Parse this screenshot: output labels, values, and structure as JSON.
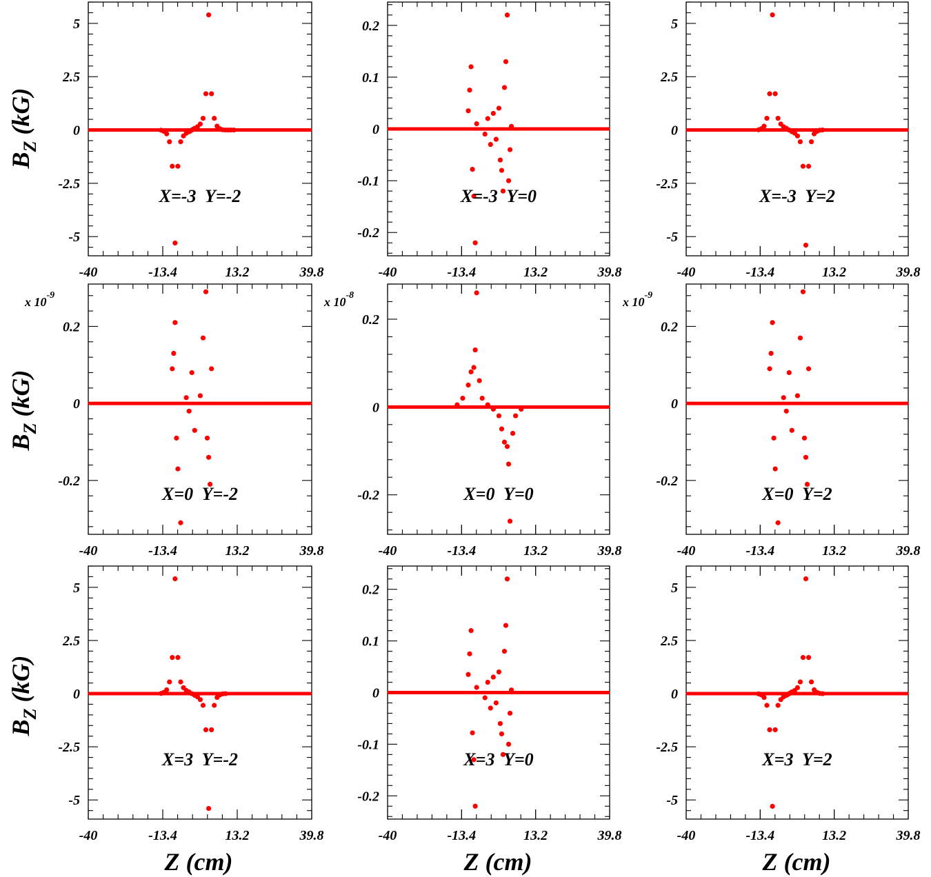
{
  "style": {
    "marker_color": "#ff0000",
    "axis_color": "#000000"
  },
  "axis_titles": {
    "y": "B",
    "y_sub": "Z",
    "y_unit": "(kG)",
    "x": "Z (cm)"
  },
  "chart_data": [
    {
      "type": "scatter",
      "annotation": "X=-3  Y=-2",
      "multiplier": "",
      "yticks": [
        -5,
        -2.5,
        0,
        2.5,
        5
      ],
      "ytick_labels": [
        "-5",
        "-2.5",
        "0",
        "2.5",
        "5"
      ],
      "ylim": [
        -5.9,
        6.0
      ],
      "xlim": [
        -40,
        39.8
      ],
      "xticks": [
        -40,
        -13.4,
        13.2,
        39.8
      ],
      "xtick_labels": [
        "-40",
        "-13.4",
        "13.2",
        "39.8"
      ],
      "x": [
        -14,
        -13,
        -12,
        -11,
        -10,
        -9,
        -8,
        -7,
        -6,
        -5,
        -4,
        -3.5,
        -3,
        -2.5,
        -2,
        -1,
        0,
        1,
        2,
        3,
        4,
        5,
        6,
        7,
        8,
        9,
        10,
        11,
        12
      ],
      "y": [
        -0.01,
        -0.06,
        -0.18,
        -0.55,
        -1.7,
        -5.3,
        -1.7,
        -0.55,
        -0.28,
        -0.15,
        -0.08,
        -0.04,
        0,
        0.04,
        0.08,
        0.15,
        0.28,
        0.55,
        1.7,
        5.4,
        1.7,
        0.55,
        0.18,
        0.06,
        0.01,
        0,
        0,
        0,
        0
      ]
    },
    {
      "type": "scatter",
      "annotation": "X=-3  Y=0",
      "multiplier": "",
      "yticks": [
        -0.2,
        -0.1,
        0,
        0.1,
        0.2
      ],
      "ytick_labels": [
        "-0.2",
        "-0.1",
        "0",
        "0.1",
        "0.2"
      ],
      "ylim": [
        -0.245,
        0.245
      ],
      "xlim": [
        -40,
        39.8
      ],
      "xticks": [
        -40,
        -13.4,
        13.2,
        39.8
      ],
      "xtick_labels": [
        "-40",
        "-13.4",
        "13.2",
        "39.8"
      ],
      "x": [
        -11,
        -10.5,
        -10,
        -9.5,
        -9,
        -8.5,
        -8,
        -5,
        -4,
        -3,
        -2,
        -1,
        0,
        0.5,
        1,
        1.5,
        2,
        2.5,
        3,
        3.5,
        4,
        4.5
      ],
      "y": [
        0.035,
        0.075,
        0.12,
        -0.078,
        -0.13,
        -0.22,
        0.01,
        -0.01,
        0.02,
        -0.03,
        0.03,
        -0.02,
        0.04,
        -0.06,
        -0.08,
        -0.12,
        0.08,
        0.13,
        0.22,
        -0.1,
        -0.04,
        0.005
      ]
    },
    {
      "type": "scatter",
      "annotation": "X=-3  Y=2",
      "multiplier": "",
      "yticks": [
        -5,
        -2.5,
        0,
        2.5,
        5
      ],
      "ytick_labels": [
        "-5",
        "-2.5",
        "0",
        "2.5",
        "5"
      ],
      "ylim": [
        -5.9,
        6.0
      ],
      "xlim": [
        -40,
        39.8
      ],
      "xticks": [
        -40,
        -13.4,
        13.2,
        39.8
      ],
      "xtick_labels": [
        "-40",
        "-13.4",
        "13.2",
        "39.8"
      ],
      "x": [
        -14,
        -13,
        -12,
        -11,
        -10,
        -9,
        -8,
        -7,
        -6,
        -5,
        -4,
        -3,
        -2,
        -1,
        0,
        1,
        2,
        3,
        4,
        5,
        6,
        7,
        8,
        9
      ],
      "y": [
        0.01,
        0.06,
        0.18,
        0.55,
        1.7,
        5.4,
        1.7,
        0.55,
        0.28,
        0.15,
        0.08,
        0,
        -0.08,
        -0.15,
        -0.28,
        -0.55,
        -1.7,
        -5.4,
        -1.7,
        -0.55,
        -0.18,
        -0.06,
        -0.01,
        0
      ]
    },
    {
      "type": "scatter",
      "annotation": "X=0  Y=-2",
      "multiplier": "x 10^-9",
      "yticks": [
        -0.2,
        0,
        0.2
      ],
      "ytick_labels": [
        "-0.2",
        "0",
        "0.2"
      ],
      "ylim": [
        -0.34,
        0.31
      ],
      "xlim": [
        -40,
        39.8
      ],
      "xticks": [
        -40,
        -13.4,
        13.2,
        39.8
      ],
      "xtick_labels": [
        "-40",
        "-13.4",
        "13.2",
        "39.8"
      ],
      "x": [
        -10,
        -9.5,
        -9,
        -8.5,
        -8,
        -7,
        -5,
        -4,
        -3,
        -2,
        0,
        1,
        2,
        2.5,
        3,
        3.5,
        4
      ],
      "y": [
        0.09,
        0.13,
        0.21,
        -0.09,
        -0.17,
        -0.31,
        0.015,
        -0.02,
        0.08,
        -0.07,
        0.02,
        0.17,
        0.29,
        -0.09,
        -0.14,
        -0.21,
        0.09
      ]
    },
    {
      "type": "scatter",
      "annotation": "X=0  Y=0",
      "multiplier": "x 10^-8",
      "yticks": [
        -0.2,
        0,
        0.2
      ],
      "ytick_labels": [
        "-0.2",
        "0",
        "0.2"
      ],
      "ylim": [
        -0.29,
        0.28
      ],
      "xlim": [
        -40,
        39.8
      ],
      "xticks": [
        -40,
        -13.4,
        13.2,
        39.8
      ],
      "xtick_labels": [
        "-40",
        "-13.4",
        "13.2",
        "39.8"
      ],
      "x": [
        -15,
        -13,
        -11,
        -10,
        -9,
        -8.5,
        -8,
        -7,
        -6,
        -4,
        -2,
        0,
        1,
        2,
        3,
        3.5,
        4,
        5,
        6,
        8
      ],
      "y": [
        0.005,
        0.02,
        0.05,
        0.08,
        0.09,
        0.13,
        0.26,
        0.06,
        0.02,
        0.005,
        -0.005,
        -0.02,
        -0.05,
        -0.08,
        -0.09,
        -0.13,
        -0.26,
        -0.06,
        -0.02,
        -0.005
      ]
    },
    {
      "type": "scatter",
      "annotation": "X=0  Y=2",
      "multiplier": "x 10^-9",
      "yticks": [
        -0.2,
        0,
        0.2
      ],
      "ytick_labels": [
        "-0.2",
        "0",
        "0.2"
      ],
      "ylim": [
        -0.34,
        0.31
      ],
      "xlim": [
        -40,
        39.8
      ],
      "xticks": [
        -40,
        -13.4,
        13.2,
        39.8
      ],
      "xtick_labels": [
        "-40",
        "-13.4",
        "13.2",
        "39.8"
      ],
      "x": [
        -10,
        -9.5,
        -9,
        -8.5,
        -8,
        -7,
        -5,
        -4,
        -3,
        -2,
        0,
        1,
        2,
        2.5,
        3,
        3.5,
        4
      ],
      "y": [
        0.09,
        0.13,
        0.21,
        -0.09,
        -0.17,
        -0.31,
        0.015,
        -0.02,
        0.08,
        -0.07,
        0.02,
        0.17,
        0.29,
        -0.09,
        -0.14,
        -0.21,
        0.09
      ]
    },
    {
      "type": "scatter",
      "annotation": "X=3  Y=-2",
      "multiplier": "",
      "yticks": [
        -5,
        -2.5,
        0,
        2.5,
        5
      ],
      "ytick_labels": [
        "-5",
        "-2.5",
        "0",
        "2.5",
        "5"
      ],
      "ylim": [
        -5.9,
        6.0
      ],
      "xlim": [
        -40,
        39.8
      ],
      "xticks": [
        -40,
        -13.4,
        13.2,
        39.8
      ],
      "xtick_labels": [
        "-40",
        "-13.4",
        "13.2",
        "39.8"
      ],
      "x": [
        -14,
        -13,
        -12,
        -11,
        -10,
        -9,
        -8,
        -7,
        -6,
        -5,
        -4,
        -3,
        -2,
        -1,
        0,
        1,
        2,
        3,
        4,
        5,
        6,
        7,
        8,
        9
      ],
      "y": [
        0.01,
        0.06,
        0.18,
        0.55,
        1.7,
        5.4,
        1.7,
        0.55,
        0.28,
        0.15,
        0.08,
        0,
        -0.08,
        -0.15,
        -0.28,
        -0.55,
        -1.7,
        -5.4,
        -1.7,
        -0.55,
        -0.18,
        -0.06,
        -0.01,
        0
      ]
    },
    {
      "type": "scatter",
      "annotation": "X=3  Y=0",
      "multiplier": "",
      "yticks": [
        -0.2,
        -0.1,
        0,
        0.1,
        0.2
      ],
      "ytick_labels": [
        "-0.2",
        "-0.1",
        "0",
        "0.1",
        "0.2"
      ],
      "ylim": [
        -0.245,
        0.245
      ],
      "xlim": [
        -40,
        39.8
      ],
      "xticks": [
        -40,
        -13.4,
        13.2,
        39.8
      ],
      "xtick_labels": [
        "-40",
        "-13.4",
        "13.2",
        "39.8"
      ],
      "x": [
        -11,
        -10.5,
        -10,
        -9.5,
        -9,
        -8.5,
        -8,
        -5,
        -4,
        -3,
        -2,
        -1,
        0,
        0.5,
        1,
        1.5,
        2,
        2.5,
        3,
        3.5,
        4,
        4.5
      ],
      "y": [
        0.035,
        0.075,
        0.12,
        -0.078,
        -0.13,
        -0.22,
        0.01,
        -0.01,
        0.02,
        -0.03,
        0.03,
        -0.02,
        0.04,
        -0.06,
        -0.08,
        -0.12,
        0.08,
        0.13,
        0.22,
        -0.1,
        -0.04,
        0.005
      ]
    },
    {
      "type": "scatter",
      "annotation": "X=3  Y=2",
      "multiplier": "",
      "yticks": [
        -5,
        -2.5,
        0,
        2.5,
        5
      ],
      "ytick_labels": [
        "-5",
        "-2.5",
        "0",
        "2.5",
        "5"
      ],
      "ylim": [
        -5.9,
        6.0
      ],
      "xlim": [
        -40,
        39.8
      ],
      "xticks": [
        -40,
        -13.4,
        13.2,
        39.8
      ],
      "xtick_labels": [
        "-40",
        "-13.4",
        "13.2",
        "39.8"
      ],
      "x": [
        -14,
        -13,
        -12,
        -11,
        -10,
        -9,
        -8,
        -7,
        -6,
        -5,
        -4,
        -3.5,
        -3,
        -2.5,
        -2,
        -1,
        0,
        1,
        2,
        3,
        4,
        5,
        6,
        7,
        8,
        9
      ],
      "y": [
        -0.01,
        -0.06,
        -0.18,
        -0.55,
        -1.7,
        -5.3,
        -1.7,
        -0.55,
        -0.28,
        -0.15,
        -0.08,
        -0.04,
        0,
        0.04,
        0.08,
        0.15,
        0.28,
        0.55,
        1.7,
        5.4,
        1.7,
        0.55,
        0.18,
        0.06,
        0.01,
        0
      ]
    }
  ]
}
